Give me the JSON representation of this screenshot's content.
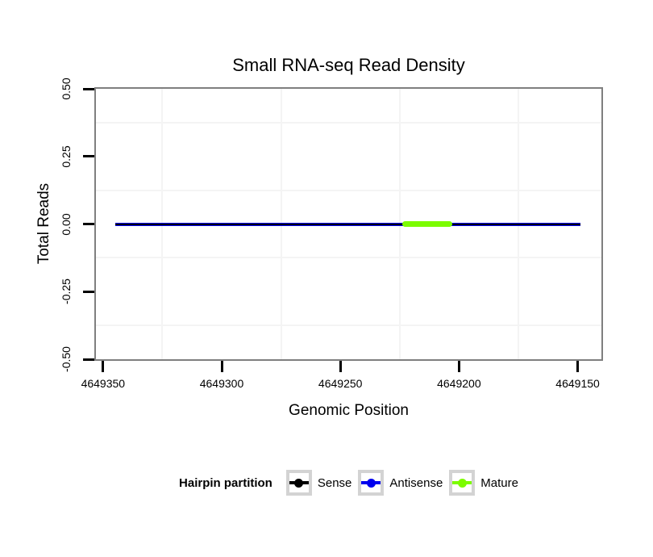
{
  "chart_data": {
    "type": "line",
    "title": "Small RNA-seq Read Density",
    "xlabel": "Genomic Position",
    "ylabel": "Total Reads",
    "x_axis": {
      "reversed": true,
      "lim": [
        4649353,
        4649140
      ],
      "ticks": [
        4649350,
        4649300,
        4649250,
        4649200,
        4649150
      ],
      "tick_labels": [
        "4649350",
        "4649300",
        "4649250",
        "4649200",
        "4649150"
      ]
    },
    "y_axis": {
      "lim": [
        -0.5,
        0.5
      ],
      "ticks": [
        0.5,
        0.25,
        0,
        -0.25,
        -0.5
      ],
      "tick_labels": [
        "0.50",
        "0.25",
        "0.00",
        "-0.25",
        "-0.50"
      ],
      "tick_label_angle": 90
    },
    "grid": {
      "major": false,
      "minor": true
    },
    "series": [
      {
        "name": "Antisense",
        "color": "#0000ee",
        "y": 0,
        "x_start": 4649345,
        "x_end": 4649149,
        "linewidth": 4,
        "layer": 1
      },
      {
        "name": "Sense",
        "color": "#000000",
        "y": 0,
        "x_start": 4649345,
        "x_end": 4649149,
        "linewidth": 2,
        "layer": 2
      },
      {
        "name": "Mature",
        "color": "#7cfc00",
        "y": 0,
        "x_start": 4649224,
        "x_end": 4649203,
        "linewidth": 7,
        "layer": 3
      }
    ],
    "legend": {
      "title": "Hairpin partition",
      "position": "bottom",
      "entries": [
        {
          "label": "Sense",
          "color": "#000000"
        },
        {
          "label": "Antisense",
          "color": "#0000ee"
        },
        {
          "label": "Mature",
          "color": "#7cfc00"
        }
      ]
    },
    "panel": {
      "border_color": "#7f7f7f",
      "background": "#ffffff"
    }
  }
}
